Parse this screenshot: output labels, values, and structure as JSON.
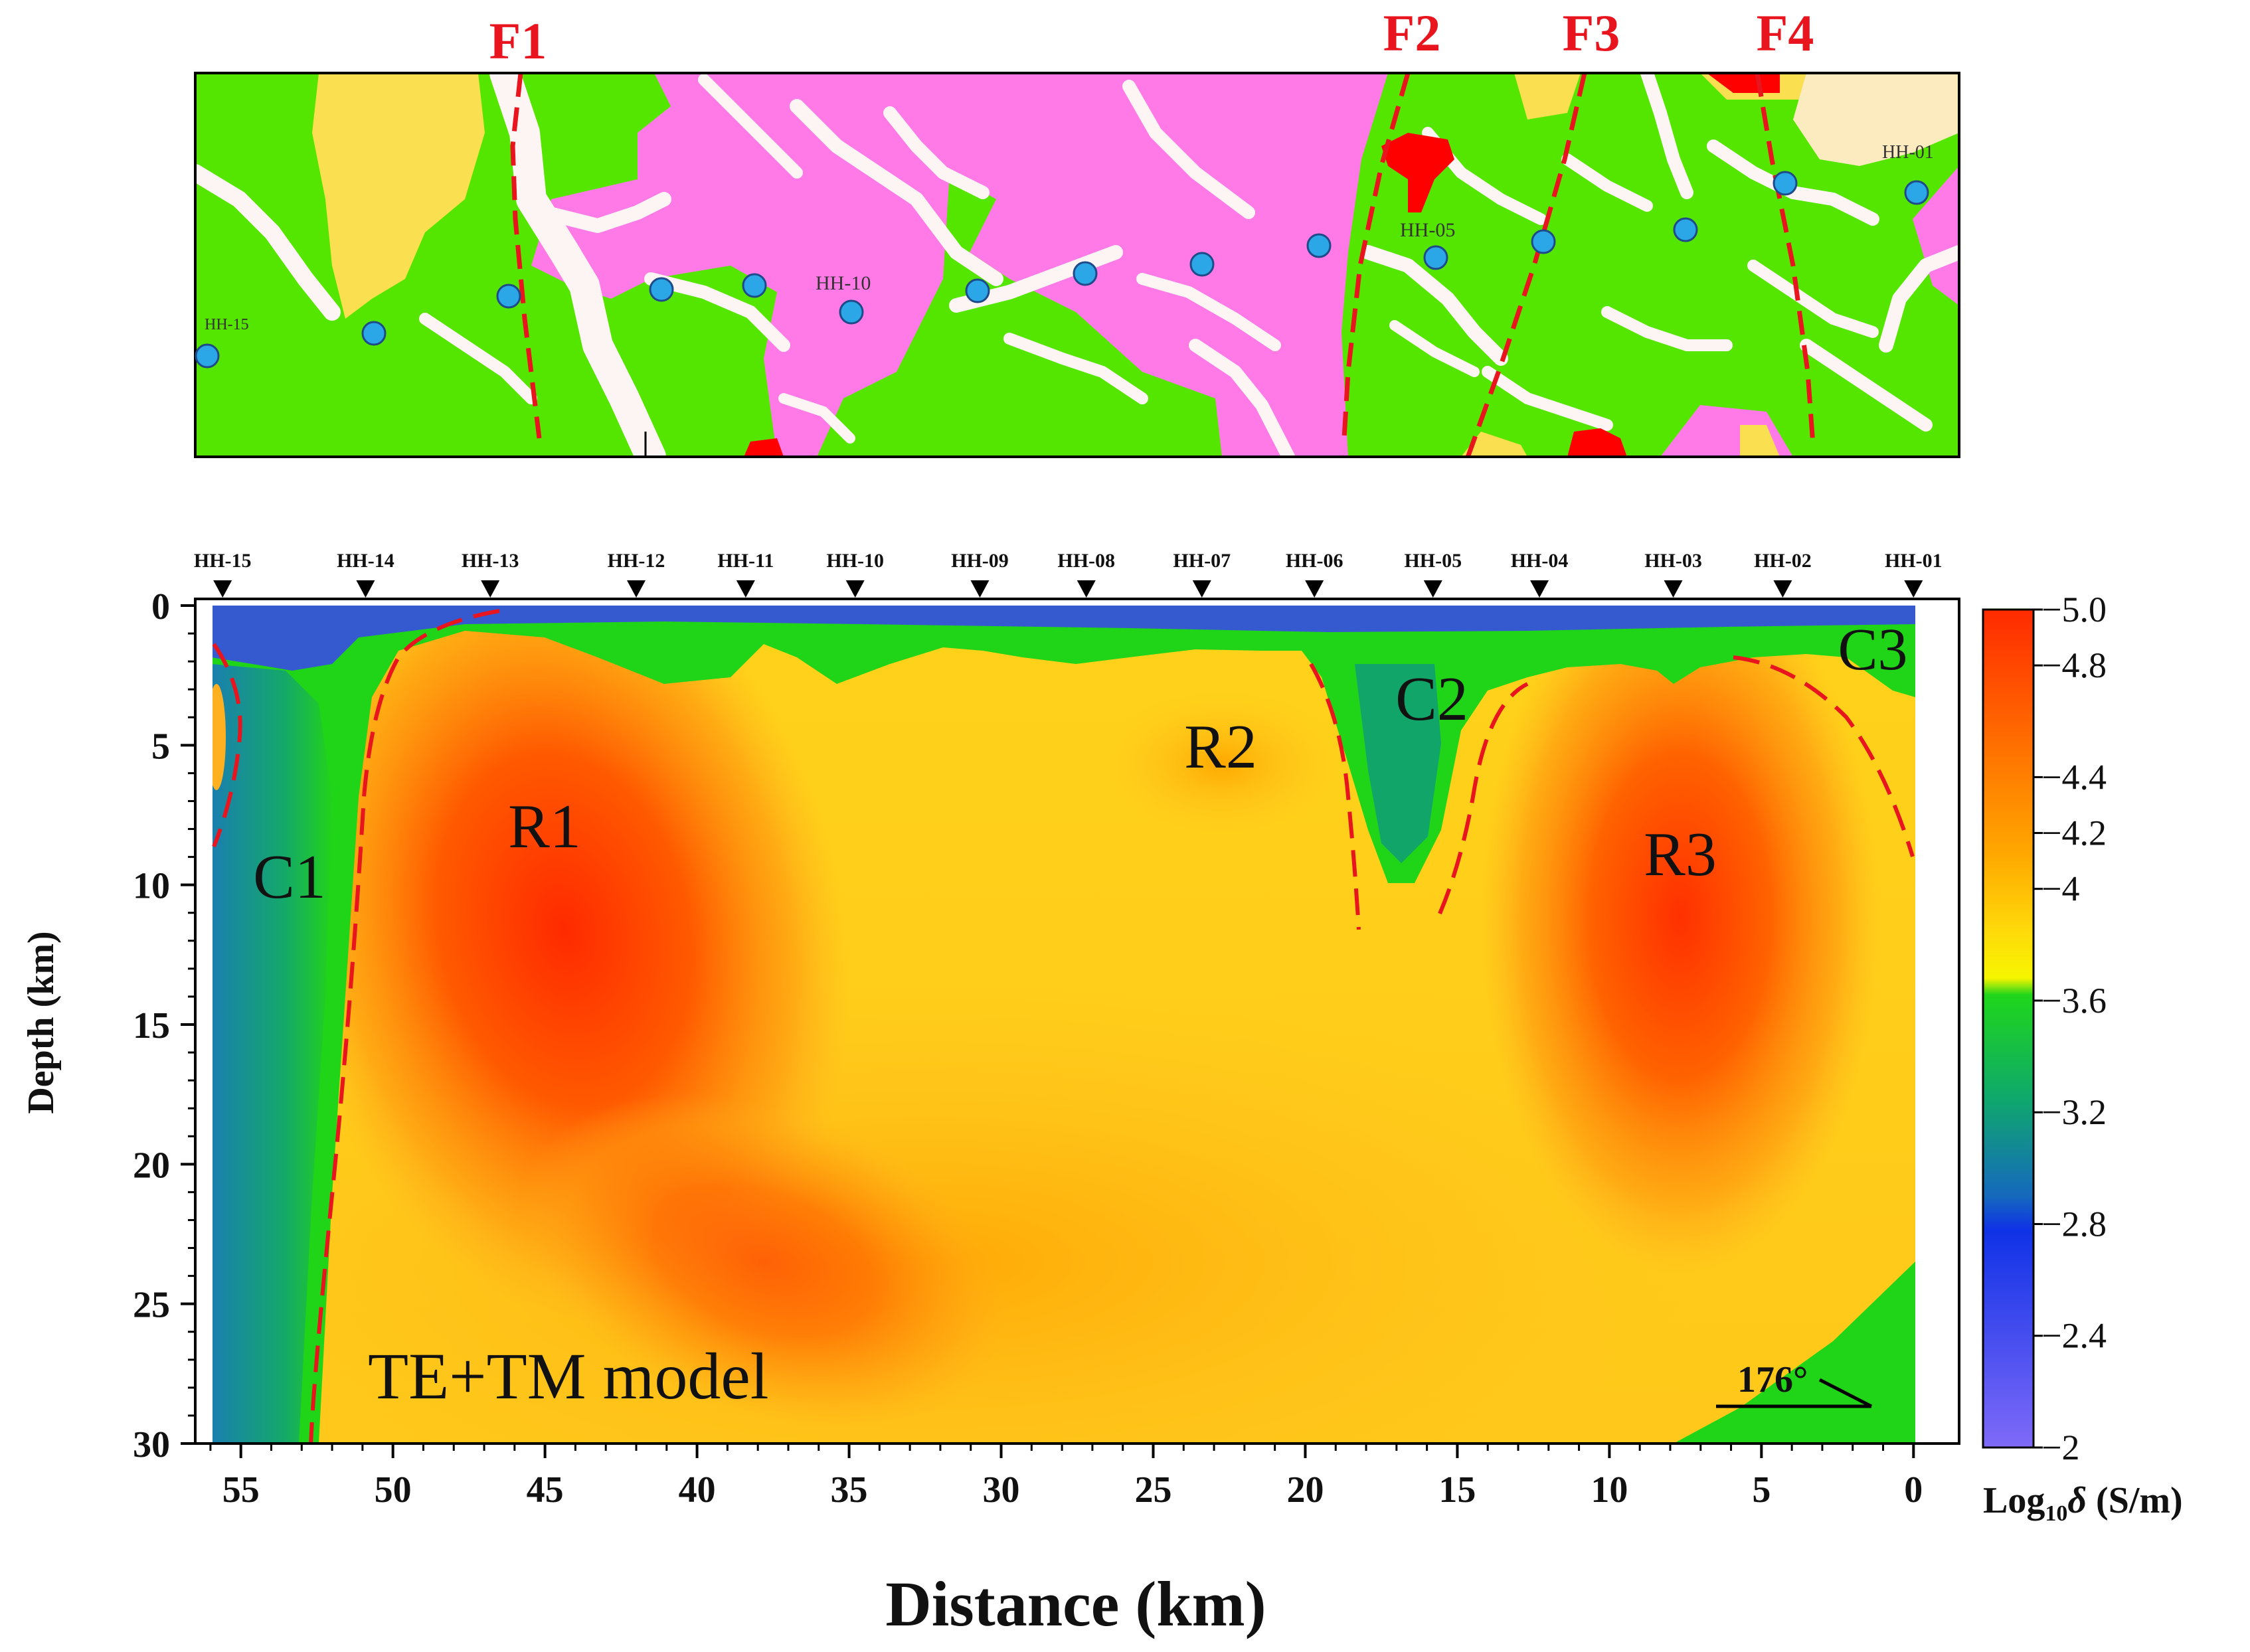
{
  "map": {
    "faults": [
      "F1",
      "F2",
      "F3",
      "F4"
    ],
    "station_labels": [
      "HH-15",
      "HH-10",
      "HH-05",
      "HH-01"
    ],
    "colors": {
      "green": "#55e600",
      "pink": "#ff7ae6",
      "yellow": "#fadf50",
      "cream": "#fdebc0",
      "river": "#fdf4f4",
      "red": "#ff0000",
      "station": "#2ba6e6"
    }
  },
  "section": {
    "stations": [
      "HH-15",
      "HH-14",
      "HH-13",
      "HH-12",
      "HH-11",
      "HH-10",
      "HH-09",
      "HH-08",
      "HH-07",
      "HH-06",
      "HH-05",
      "HH-04",
      "HH-03",
      "HH-02",
      "HH-01"
    ],
    "station_distance_km": [
      55.6,
      50.9,
      46.8,
      42.0,
      38.4,
      34.8,
      30.7,
      27.2,
      23.4,
      19.7,
      15.8,
      12.3,
      7.9,
      4.3,
      0.0
    ],
    "xlabel": "Distance (km)",
    "ylabel": "Depth (km)",
    "xticks": [
      "55",
      "50",
      "45",
      "40",
      "35",
      "30",
      "25",
      "20",
      "15",
      "10",
      "5",
      "0"
    ],
    "yticks": [
      "0",
      "5",
      "10",
      "15",
      "20",
      "25",
      "30"
    ],
    "xlim": [
      56.5,
      -1.5
    ],
    "ylim": [
      0,
      30
    ],
    "anomalies": [
      "R1",
      "R2",
      "R3",
      "C1",
      "C2",
      "C3"
    ],
    "model_label": "TE+TM model",
    "strike": "176°"
  },
  "colorbar": {
    "ticks": [
      "−5.0",
      "−4.8",
      "−4.4",
      "−4.2",
      "−4",
      "−3.6",
      "−3.2",
      "−2.8",
      "−2.4",
      "−2"
    ],
    "title_prefix": "Log",
    "title_sub": "10",
    "title_symbol": "δ",
    "title_suffix": " (S/m)",
    "colors": [
      "#ff2a00",
      "#ff6a00",
      "#ffa700",
      "#ffd80a",
      "#f6f500",
      "#1fd61a",
      "#0faa6a",
      "#1569bd",
      "#0f32e6",
      "#7f6af8"
    ]
  }
}
